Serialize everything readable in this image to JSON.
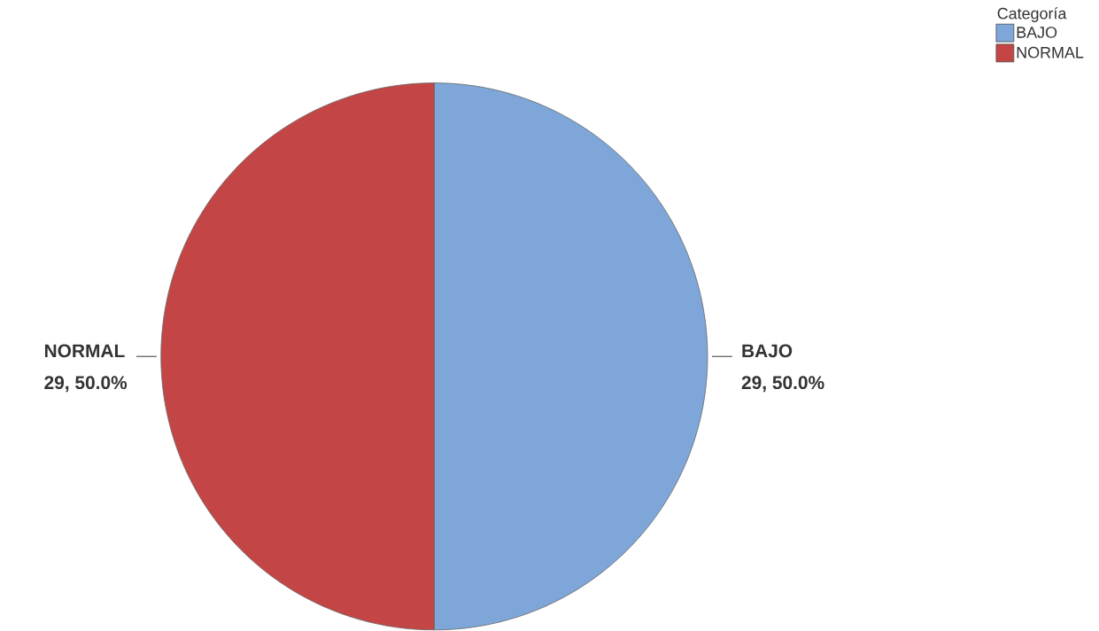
{
  "chart_data": {
    "type": "pie",
    "legend_title": "Categoría",
    "legend": "top right",
    "categories": [
      "BAJO",
      "NORMAL"
    ],
    "values": [
      29,
      29
    ],
    "value_labels": [
      "29, 50.0%",
      "29, 50.0%"
    ],
    "colors": [
      "#7ea6d8",
      "#c44545"
    ]
  }
}
